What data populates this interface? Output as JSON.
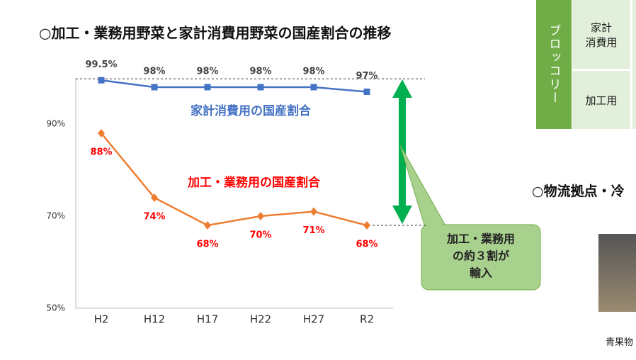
{
  "chart_data": {
    "type": "line",
    "title": "○加工・業務用野菜と家計消費用野菜の国産割合の推移",
    "categories": [
      "H2",
      "H12",
      "H17",
      "H22",
      "H27",
      "R2"
    ],
    "series": [
      {
        "name": "家計消費用の国産割合",
        "color": "#4472c4",
        "marker": "square",
        "values": [
          99.5,
          98,
          98,
          98,
          98,
          97
        ],
        "value_labels": [
          "99.5%",
          "98%",
          "98%",
          "98%",
          "98%",
          "97%"
        ]
      },
      {
        "name": "加工・業務用の国産割合",
        "color": "#ed7d31",
        "marker": "diamond",
        "values": [
          88,
          74,
          68,
          70,
          71,
          68
        ],
        "value_labels": [
          "88%",
          "74%",
          "68%",
          "70%",
          "71%",
          "68%"
        ]
      }
    ],
    "ylim": [
      50,
      100
    ],
    "yticks": [
      {
        "value": 50,
        "label": "50%"
      },
      {
        "value": 70,
        "label": "70%"
      },
      {
        "value": 90,
        "label": "90%"
      }
    ],
    "grid": false,
    "callout": [
      "加工・業務用",
      "の約３割が",
      "輸入"
    ]
  },
  "side_table": {
    "item": "ブロッコリー",
    "rows": [
      [
        "家計",
        "消費用"
      ],
      [
        "加工用"
      ]
    ]
  },
  "section_title": "○物流拠点・冷",
  "photo_caption": "青果物"
}
